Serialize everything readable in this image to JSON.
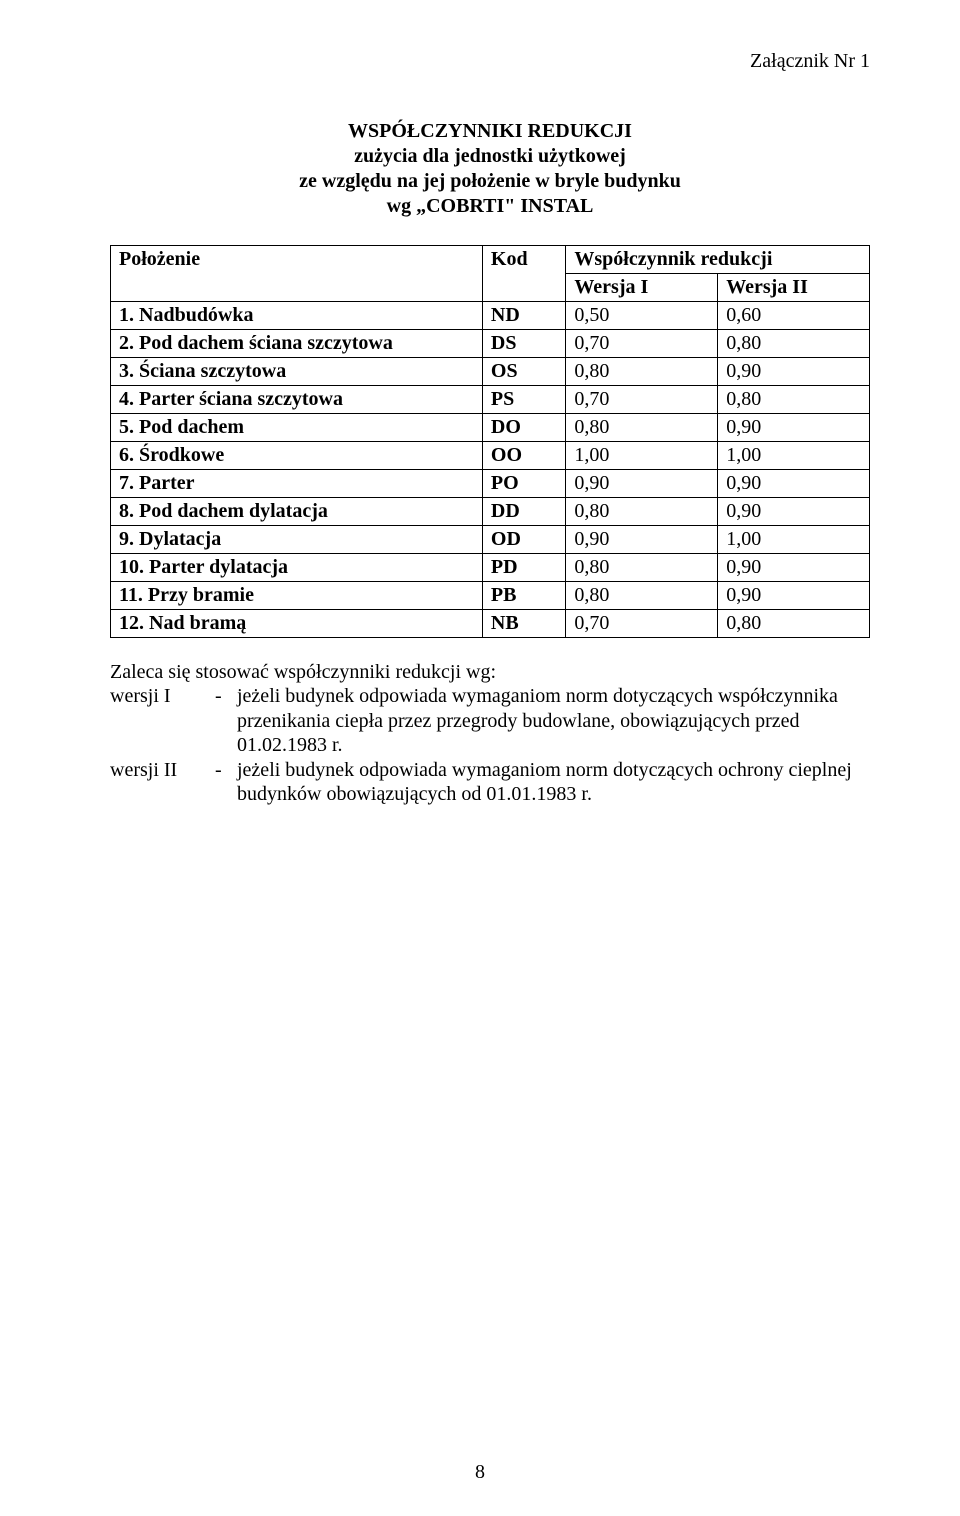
{
  "attachment_label": "Załącznik  Nr 1",
  "title_lines": [
    "WSPÓŁCZYNNIKI REDUKCJI",
    "zużycia dla jednostki użytkowej",
    "ze względu na jej położenie w bryle budynku",
    "wg „COBRTI\" INSTAL"
  ],
  "table": {
    "header": {
      "position": "Położenie",
      "code": "Kod",
      "coeff": "Współczynnik redukcji",
      "version1": "Wersja I",
      "version2": "Wersja II"
    },
    "rows": [
      {
        "label": "1. Nadbudówka",
        "code": "ND",
        "v1": "0,50",
        "v2": "0,60"
      },
      {
        "label": "2. Pod dachem ściana szczytowa",
        "code": "DS",
        "v1": "0,70",
        "v2": "0,80"
      },
      {
        "label": "3. Ściana szczytowa",
        "code": "OS",
        "v1": "0,80",
        "v2": "0,90"
      },
      {
        "label": "4. Parter ściana szczytowa",
        "code": "PS",
        "v1": "0,70",
        "v2": "0,80"
      },
      {
        "label": "5. Pod dachem",
        "code": "DO",
        "v1": "0,80",
        "v2": "0,90"
      },
      {
        "label": "6. Środkowe",
        "code": "OO",
        "v1": "1,00",
        "v2": "1,00"
      },
      {
        "label": "7. Parter",
        "code": "PO",
        "v1": "0,90",
        "v2": "0,90"
      },
      {
        "label": "8. Pod dachem dylatacja",
        "code": "DD",
        "v1": "0,80",
        "v2": "0,90"
      },
      {
        "label": "9. Dylatacja",
        "code": "OD",
        "v1": "0,90",
        "v2": "1,00"
      },
      {
        "label": "10. Parter dylatacja",
        "code": "PD",
        "v1": "0,80",
        "v2": "0,90"
      },
      {
        "label": "11. Przy bramie",
        "code": "PB",
        "v1": "0,80",
        "v2": "0,90"
      },
      {
        "label": "12. Nad bramą",
        "code": "NB",
        "v1": "0,70",
        "v2": "0,80"
      }
    ]
  },
  "notes": {
    "intro": "Zaleca się stosować współczynniki redukcji wg:",
    "items": [
      {
        "key": "wersji I",
        "dash": "-",
        "text": "jeżeli budynek odpowiada wymaganiom norm dotyczących współczynnika przenikania ciepła przez przegrody budowlane, obowiązujących przed 01.02.1983 r."
      },
      {
        "key": "wersji II",
        "dash": "-",
        "text": "jeżeli budynek odpowiada wymaganiom norm dotyczących ochrony cieplnej budynków obowiązujących od 01.01.1983 r."
      }
    ]
  },
  "page_number": "8"
}
